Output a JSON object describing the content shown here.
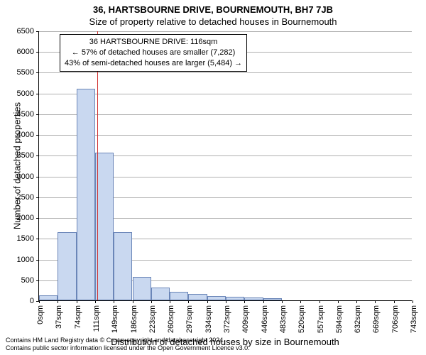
{
  "title_main": "36, HARTSBOURNE DRIVE, BOURNEMOUTH, BH7 7JB",
  "title_sub": "Size of property relative to detached houses in Bournemouth",
  "y_axis_label": "Number of detached properties",
  "x_axis_label": "Distribution of detached houses by size in Bournemouth",
  "histogram": {
    "type": "histogram",
    "y_min": 0,
    "y_max": 6500,
    "y_tick_step": 500,
    "x_ticks": [
      "0sqm",
      "37sqm",
      "74sqm",
      "111sqm",
      "149sqm",
      "186sqm",
      "223sqm",
      "260sqm",
      "297sqm",
      "334sqm",
      "372sqm",
      "409sqm",
      "446sqm",
      "483sqm",
      "520sqm",
      "557sqm",
      "594sqm",
      "632sqm",
      "669sqm",
      "706sqm",
      "743sqm"
    ],
    "bar_heights": [
      120,
      1650,
      5100,
      3550,
      1650,
      570,
      300,
      200,
      150,
      110,
      90,
      70,
      60,
      0,
      0,
      0,
      0,
      0,
      0,
      0
    ],
    "bar_fill": "#c9d8f0",
    "bar_stroke": "#6b86b8",
    "bar_stroke_width": 1,
    "grid_color": "#b0b0b0",
    "background_color": "#ffffff",
    "axis_fontsize": 11,
    "label_fontsize": 13
  },
  "reference_line": {
    "position_sqm": 116,
    "range_min_sqm": 0,
    "range_max_sqm": 743,
    "color": "#d03030",
    "width": 1
  },
  "callout": {
    "line1": "36 HARTSBOURNE DRIVE: 116sqm",
    "line2": "← 57% of detached houses are smaller (7,282)",
    "line3": "43% of semi-detached houses are larger (5,484) →"
  },
  "footnote": {
    "line1": "Contains HM Land Registry data © Crown copyright and database right 2024.",
    "line2": "Contains public sector information licensed under the Open Government Licence v3.0."
  }
}
